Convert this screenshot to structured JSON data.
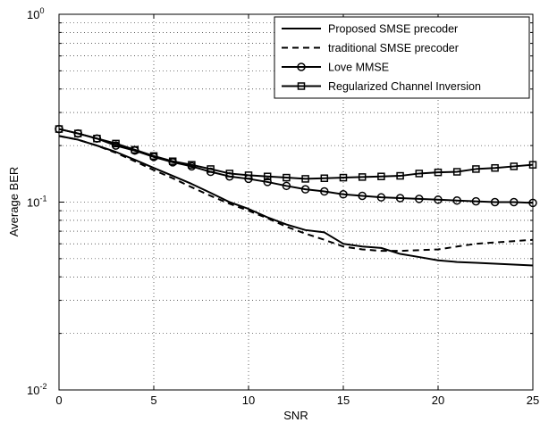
{
  "chart_data": {
    "type": "line",
    "xlabel": "SNR",
    "ylabel": "Average BER",
    "xlim": [
      0,
      25
    ],
    "ylim": [
      0.01,
      1
    ],
    "y_scale": "log",
    "grid": true,
    "legend_position": "top-right",
    "x_ticks": [
      "0",
      "5",
      "10",
      "15",
      "20",
      "25"
    ],
    "y_ticks": [
      {
        "value": 0.01,
        "base": "10",
        "exp": "-2"
      },
      {
        "value": 0.1,
        "base": "10",
        "exp": "-1"
      },
      {
        "value": 1,
        "base": "10",
        "exp": "0"
      }
    ],
    "series": [
      {
        "name": "Proposed SMSE precoder",
        "style": "solid",
        "marker": "none",
        "points": [
          [
            0,
            0.225
          ],
          [
            1,
            0.215
          ],
          [
            2,
            0.2
          ],
          [
            3,
            0.185
          ],
          [
            4,
            0.168
          ],
          [
            5,
            0.152
          ],
          [
            6,
            0.138
          ],
          [
            7,
            0.125
          ],
          [
            8,
            0.112
          ],
          [
            9,
            0.1
          ],
          [
            10,
            0.092
          ],
          [
            11,
            0.083
          ],
          [
            12,
            0.076
          ],
          [
            13,
            0.071
          ],
          [
            14,
            0.069
          ],
          [
            15,
            0.06
          ],
          [
            16,
            0.058
          ],
          [
            17,
            0.057
          ],
          [
            18,
            0.053
          ],
          [
            19,
            0.051
          ],
          [
            20,
            0.049
          ],
          [
            21,
            0.048
          ],
          [
            22,
            0.0475
          ],
          [
            23,
            0.047
          ],
          [
            24,
            0.0465
          ],
          [
            25,
            0.046
          ]
        ]
      },
      {
        "name": "traditional SMSE precoder",
        "style": "dashed",
        "marker": "none",
        "points": [
          [
            0,
            0.225
          ],
          [
            1,
            0.215
          ],
          [
            2,
            0.2
          ],
          [
            3,
            0.183
          ],
          [
            4,
            0.165
          ],
          [
            5,
            0.148
          ],
          [
            6,
            0.134
          ],
          [
            7,
            0.12
          ],
          [
            8,
            0.108
          ],
          [
            9,
            0.098
          ],
          [
            10,
            0.09
          ],
          [
            11,
            0.082
          ],
          [
            12,
            0.074
          ],
          [
            13,
            0.068
          ],
          [
            14,
            0.063
          ],
          [
            15,
            0.058
          ],
          [
            16,
            0.056
          ],
          [
            17,
            0.055
          ],
          [
            18,
            0.055
          ],
          [
            19,
            0.0555
          ],
          [
            20,
            0.056
          ],
          [
            21,
            0.058
          ],
          [
            22,
            0.06
          ],
          [
            23,
            0.061
          ],
          [
            24,
            0.062
          ],
          [
            25,
            0.063
          ]
        ]
      },
      {
        "name": "Love MMSE",
        "style": "solid",
        "marker": "circle",
        "points": [
          [
            0,
            0.245
          ],
          [
            1,
            0.232
          ],
          [
            2,
            0.218
          ],
          [
            3,
            0.2
          ],
          [
            4,
            0.188
          ],
          [
            5,
            0.174
          ],
          [
            6,
            0.163
          ],
          [
            7,
            0.155
          ],
          [
            8,
            0.145
          ],
          [
            9,
            0.137
          ],
          [
            10,
            0.133
          ],
          [
            11,
            0.128
          ],
          [
            12,
            0.122
          ],
          [
            13,
            0.117
          ],
          [
            14,
            0.114
          ],
          [
            15,
            0.11
          ],
          [
            16,
            0.108
          ],
          [
            17,
            0.106
          ],
          [
            18,
            0.105
          ],
          [
            19,
            0.104
          ],
          [
            20,
            0.103
          ],
          [
            21,
            0.102
          ],
          [
            22,
            0.101
          ],
          [
            23,
            0.1
          ],
          [
            24,
            0.1
          ],
          [
            25,
            0.099
          ]
        ]
      },
      {
        "name": "Regularized Channel Inversion",
        "style": "solid",
        "marker": "square",
        "points": [
          [
            0,
            0.245
          ],
          [
            1,
            0.232
          ],
          [
            2,
            0.218
          ],
          [
            3,
            0.205
          ],
          [
            4,
            0.19
          ],
          [
            5,
            0.176
          ],
          [
            6,
            0.165
          ],
          [
            7,
            0.158
          ],
          [
            8,
            0.15
          ],
          [
            9,
            0.142
          ],
          [
            10,
            0.139
          ],
          [
            11,
            0.137
          ],
          [
            12,
            0.135
          ],
          [
            13,
            0.133
          ],
          [
            14,
            0.134
          ],
          [
            15,
            0.135
          ],
          [
            16,
            0.136
          ],
          [
            17,
            0.137
          ],
          [
            18,
            0.138
          ],
          [
            19,
            0.142
          ],
          [
            20,
            0.144
          ],
          [
            21,
            0.145
          ],
          [
            22,
            0.15
          ],
          [
            23,
            0.152
          ],
          [
            24,
            0.155
          ],
          [
            25,
            0.158
          ]
        ]
      }
    ]
  }
}
